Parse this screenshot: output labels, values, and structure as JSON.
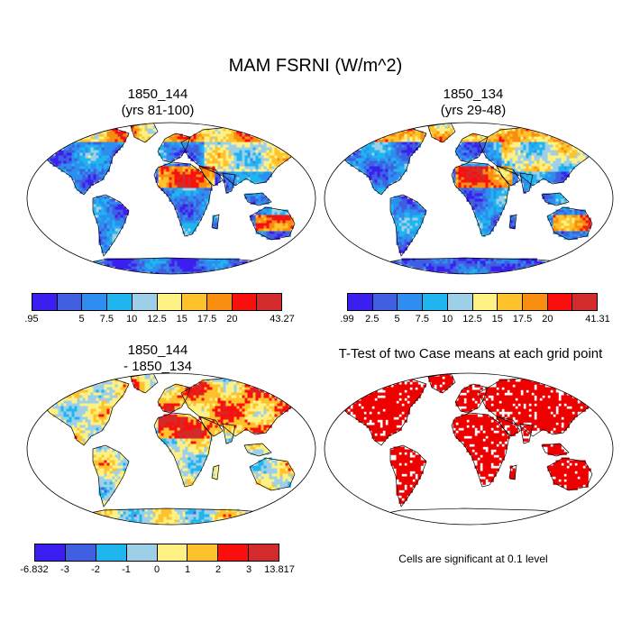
{
  "title": "MAM FSRNI (W/m^2)",
  "panels": [
    {
      "id": "p1",
      "title_line1": "1850_144",
      "title_line2": "(yrs 81-100)",
      "colors": [
        "#3a1ff0",
        "#3f5fe0",
        "#2d8ef0",
        "#1fb6ef",
        "#9ecfe8",
        "#fdf184",
        "#fdc22c",
        "#f98d10",
        "#fa0f0f",
        "#d32b2b"
      ],
      "labels": [
        ".95",
        "",
        "5",
        "7.5",
        "10",
        "12.5",
        "15",
        "17.5",
        "20",
        "",
        "43.27"
      ]
    },
    {
      "id": "p2",
      "title_line1": "1850_134",
      "title_line2": "(yrs 29-48)",
      "colors": [
        "#3a1ff0",
        "#3f5fe0",
        "#2d8ef0",
        "#1fb6ef",
        "#9ecfe8",
        "#fdf184",
        "#fdc22c",
        "#f98d10",
        "#fa0f0f",
        "#d32b2b"
      ],
      "labels": [
        ".99",
        "2.5",
        "5",
        "7.5",
        "10",
        "12.5",
        "15",
        "17.5",
        "20",
        "",
        "41.31"
      ]
    },
    {
      "id": "p3",
      "title_line1": "1850_144",
      "title_line2": "- 1850_134",
      "colors": [
        "#3a1ff0",
        "#3f5fe0",
        "#1fb6ef",
        "#9ecfe8",
        "#fdf184",
        "#fdc22c",
        "#fa0f0f",
        "#d32b2b"
      ],
      "labels": [
        "-6.832",
        "-3",
        "-2",
        "-1",
        "0",
        "1",
        "2",
        "3",
        "13.817"
      ]
    },
    {
      "id": "p4",
      "title_line1": "T-Test of two Case means at each grid point",
      "note": "Cells are significant at 0.1 level",
      "color": "#ee0000"
    }
  ]
}
